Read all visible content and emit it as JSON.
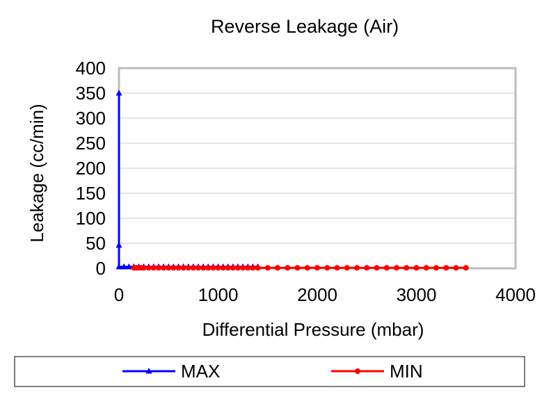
{
  "chart_data": {
    "type": "line",
    "title": "Reverse Leakage (Air)",
    "xlabel": "Differential Pressure (mbar)",
    "ylabel": "Leakage (cc/min)",
    "xlim": [
      0,
      4000
    ],
    "ylim": [
      0,
      400
    ],
    "xticks": [
      "0",
      "1000",
      "2000",
      "3000",
      "4000"
    ],
    "yticks": [
      "0",
      "50",
      "100",
      "150",
      "200",
      "250",
      "300",
      "350",
      "400"
    ],
    "grid": true,
    "legend_position": "bottom",
    "series": [
      {
        "name": "MAX",
        "color": "#0000ff",
        "marker": "triangle",
        "x": [
          0,
          0,
          0,
          50,
          100,
          150,
          200,
          250,
          300,
          350,
          400,
          450,
          500,
          550,
          600,
          650,
          700,
          750,
          800,
          850,
          900,
          950,
          1000,
          1050,
          1100,
          1150,
          1200,
          1250,
          1300,
          1350,
          1400
        ],
        "y": [
          350,
          46,
          3,
          3,
          3,
          3,
          3,
          3,
          3,
          3,
          3,
          3,
          3,
          3,
          3,
          3,
          3,
          3,
          3,
          3,
          3,
          3,
          3,
          3,
          3,
          3,
          3,
          3,
          3,
          3,
          3
        ]
      },
      {
        "name": "MIN",
        "color": "#ff0000",
        "marker": "circle",
        "x": [
          150,
          175,
          200,
          225,
          250,
          300,
          350,
          400,
          450,
          500,
          550,
          600,
          650,
          700,
          750,
          800,
          850,
          900,
          950,
          1000,
          1050,
          1100,
          1150,
          1200,
          1250,
          1300,
          1350,
          1400,
          1500,
          1600,
          1700,
          1800,
          1900,
          2000,
          2100,
          2200,
          2300,
          2400,
          2500,
          2600,
          2700,
          2800,
          2900,
          3000,
          3100,
          3200,
          3300,
          3400,
          3500
        ],
        "y": [
          1,
          1,
          1,
          1,
          1,
          1,
          1,
          1,
          1,
          1,
          1,
          1,
          1,
          1,
          1,
          1,
          1,
          1,
          1,
          1,
          1,
          1,
          1,
          1,
          1,
          1,
          1,
          1,
          1,
          1,
          1,
          1,
          1,
          1,
          1,
          1,
          1,
          1,
          1,
          1,
          1,
          1,
          1,
          1,
          1,
          1,
          1,
          1,
          1
        ]
      }
    ]
  }
}
